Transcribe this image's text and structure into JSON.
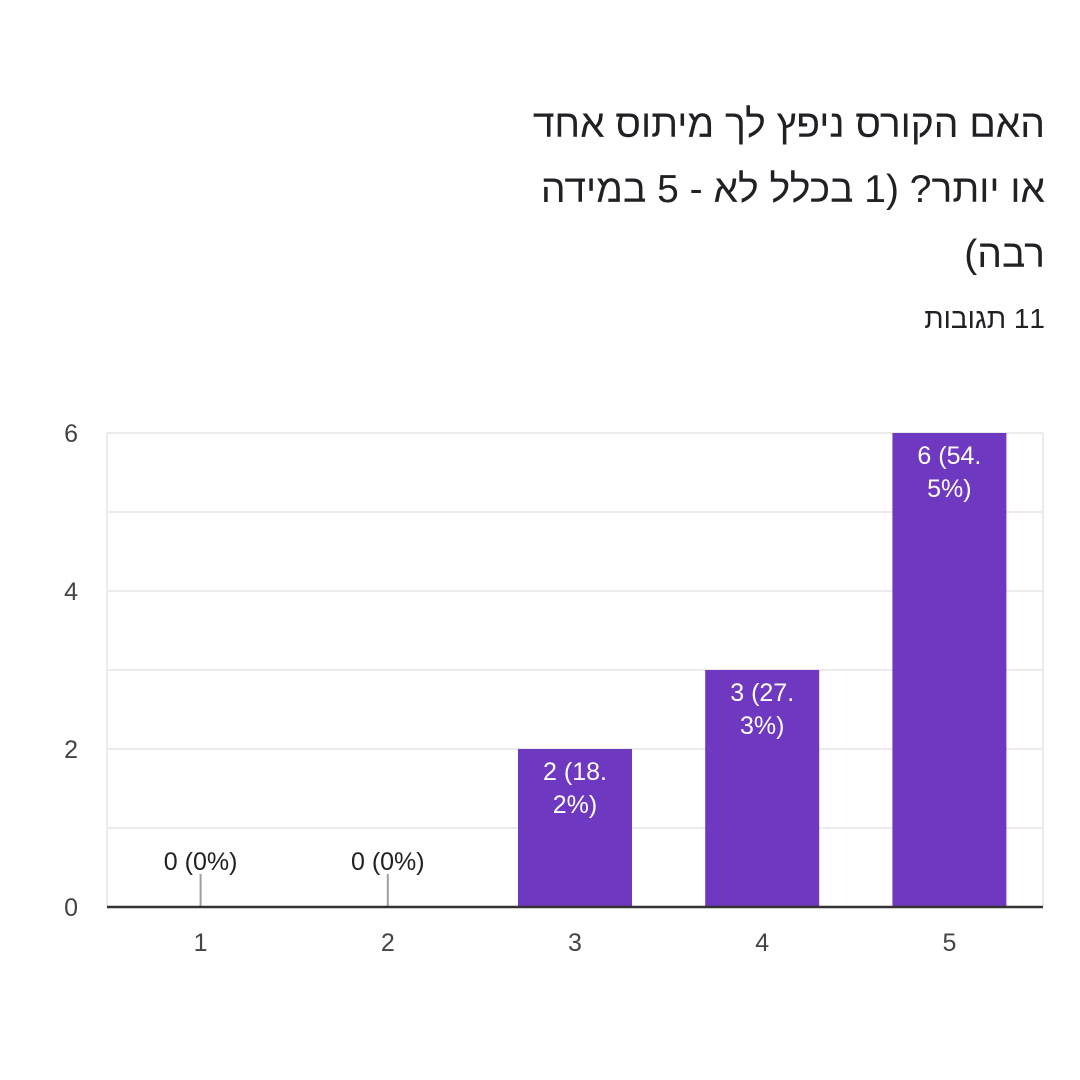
{
  "question": {
    "title": "האם הקורס ניפץ לך מיתוס אחד או יותר? (1 בכלל לא - 5 במידה רבה)",
    "responses": "11 תגובות"
  },
  "colors": {
    "bar": "#6f38c0",
    "grid": "#ebebeb",
    "axis": "#333333",
    "text": "#202124",
    "tick_label": "#444444",
    "bar_label": "#ffffff"
  },
  "chart_data": {
    "type": "bar",
    "categories": [
      "1",
      "2",
      "3",
      "4",
      "5"
    ],
    "values": [
      0,
      0,
      2,
      3,
      6
    ],
    "data_labels": [
      [
        "0 (0%)"
      ],
      [
        "0 (0%)"
      ],
      [
        "2 (18.",
        "2%)"
      ],
      [
        "3 (27.",
        "3%)"
      ],
      [
        "6 (54.",
        "5%)"
      ]
    ],
    "y_ticks": [
      0,
      2,
      4,
      6
    ],
    "y_tick_labels": [
      "0",
      "2",
      "4",
      "6"
    ],
    "ylim": [
      0,
      6
    ],
    "grid": true,
    "legend": "none"
  }
}
